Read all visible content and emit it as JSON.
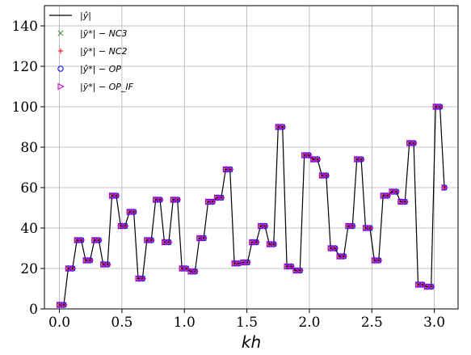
{
  "chart_data": {
    "type": "line",
    "title": "",
    "xlabel": "kh",
    "ylabel": "",
    "xlim": [
      -0.12,
      3.19
    ],
    "ylim": [
      0,
      150
    ],
    "x_ticks": [
      0.0,
      0.5,
      1.0,
      1.5,
      2.0,
      2.5,
      3.0
    ],
    "x_tick_labels": [
      "0.0",
      "0.5",
      "1.0",
      "1.5",
      "2.0",
      "2.5",
      "3.0"
    ],
    "y_ticks": [
      0,
      20,
      40,
      60,
      80,
      100,
      120,
      140
    ],
    "y_tick_labels": [
      "0",
      "20",
      "40",
      "60",
      "80",
      "100",
      "120",
      "140"
    ],
    "grid": true,
    "legend_position": "top-left",
    "x": [
      0.0,
      0.035,
      0.07,
      0.105,
      0.14,
      0.175,
      0.21,
      0.245,
      0.28,
      0.315,
      0.35,
      0.385,
      0.42,
      0.455,
      0.49,
      0.525,
      0.56,
      0.595,
      0.63,
      0.665,
      0.7,
      0.735,
      0.77,
      0.805,
      0.84,
      0.875,
      0.91,
      0.945,
      0.98,
      1.015,
      1.05,
      1.085,
      1.12,
      1.155,
      1.19,
      1.225,
      1.26,
      1.295,
      1.33,
      1.365,
      1.4,
      1.435,
      1.47,
      1.505,
      1.54,
      1.575,
      1.61,
      1.645,
      1.68,
      1.715,
      1.75,
      1.785,
      1.82,
      1.855,
      1.89,
      1.925,
      1.96,
      1.995,
      2.03,
      2.065,
      2.1,
      2.135,
      2.17,
      2.205,
      2.24,
      2.275,
      2.31,
      2.345,
      2.38,
      2.415,
      2.45,
      2.485,
      2.52,
      2.555,
      2.59,
      2.625,
      2.66,
      2.695,
      2.73,
      2.765,
      2.8,
      2.835,
      2.87,
      2.905,
      2.94,
      2.975,
      3.01,
      3.045,
      3.08
    ],
    "series": [
      {
        "name": "|ŷ|",
        "style": "line",
        "color": "#000000",
        "values": [
          2,
          2,
          20,
          20,
          34,
          34,
          24,
          24,
          34,
          34,
          22,
          22,
          56,
          56,
          41,
          41,
          48,
          48,
          15,
          15,
          34,
          34,
          54,
          54,
          33,
          33,
          54,
          54,
          20,
          20,
          18.5,
          18.5,
          35,
          35,
          53,
          53,
          55,
          55,
          69,
          69,
          22.5,
          22.5,
          23,
          23,
          33,
          33,
          41,
          41,
          32,
          32,
          90,
          90,
          21,
          21,
          19,
          19,
          76,
          76,
          74,
          74,
          66,
          66,
          30,
          30,
          26,
          26,
          41,
          41,
          74,
          74,
          40,
          40,
          24,
          24,
          56,
          56,
          58,
          58,
          53,
          53,
          82,
          82,
          12,
          12,
          11,
          11,
          100,
          100,
          60
        ]
      },
      {
        "name": "|ỹ*| − NC3",
        "style": "marker",
        "marker": "x",
        "color": "#2e8b2e",
        "values": [
          2,
          2,
          20,
          20,
          34,
          34,
          24,
          24,
          34,
          34,
          22,
          22,
          56,
          56,
          41,
          41,
          48,
          48,
          15,
          15,
          34,
          34,
          54,
          54,
          33,
          33,
          54,
          54,
          20,
          20,
          18.5,
          18.5,
          35,
          35,
          53,
          53,
          55,
          55,
          69,
          69,
          22.5,
          22.5,
          23,
          23,
          33,
          33,
          41,
          41,
          32,
          32,
          90,
          90,
          21,
          21,
          19,
          19,
          76,
          76,
          74,
          74,
          66,
          66,
          30,
          30,
          26,
          26,
          41,
          41,
          74,
          74,
          40,
          40,
          24,
          24,
          56,
          56,
          58,
          58,
          53,
          53,
          82,
          82,
          12,
          12,
          11,
          11,
          100,
          100,
          60
        ]
      },
      {
        "name": "|ỹ*| − NC2",
        "style": "marker",
        "marker": "+",
        "color": "#ff0000",
        "values": [
          2,
          2,
          20,
          20,
          34,
          34,
          24,
          24,
          34,
          34,
          22,
          22,
          56,
          56,
          41,
          41,
          48,
          48,
          15,
          15,
          34,
          34,
          54,
          54,
          33,
          33,
          54,
          54,
          20,
          20,
          18.5,
          18.5,
          35,
          35,
          53,
          53,
          55,
          55,
          69,
          69,
          22.5,
          22.5,
          23,
          23,
          33,
          33,
          41,
          41,
          32,
          32,
          90,
          90,
          21,
          21,
          19,
          19,
          76,
          76,
          74,
          74,
          66,
          66,
          30,
          30,
          26,
          26,
          41,
          41,
          74,
          74,
          40,
          40,
          24,
          24,
          56,
          56,
          58,
          58,
          53,
          53,
          82,
          82,
          12,
          12,
          11,
          11,
          100,
          100,
          60
        ]
      },
      {
        "name": "|ŷ*| − OP",
        "style": "marker",
        "marker": "o",
        "color": "#0000ff",
        "values": [
          2,
          2,
          20,
          20,
          34,
          34,
          24,
          24,
          34,
          34,
          22,
          22,
          56,
          56,
          41,
          41,
          48,
          48,
          15,
          15,
          34,
          34,
          54,
          54,
          33,
          33,
          54,
          54,
          20,
          20,
          18.5,
          18.5,
          35,
          35,
          53,
          53,
          55,
          55,
          69,
          69,
          22.5,
          22.5,
          23,
          23,
          33,
          33,
          41,
          41,
          32,
          32,
          90,
          90,
          21,
          21,
          19,
          19,
          76,
          76,
          74,
          74,
          66,
          66,
          30,
          30,
          26,
          26,
          41,
          41,
          74,
          74,
          40,
          40,
          24,
          24,
          56,
          56,
          58,
          58,
          53,
          53,
          82,
          82,
          12,
          12,
          11,
          11,
          100,
          100,
          60
        ]
      },
      {
        "name": "|ỹ*| − OP_IF",
        "style": "marker",
        "marker": ">",
        "color": "#cc00cc",
        "values": [
          2,
          2,
          20,
          20,
          34,
          34,
          24,
          24,
          34,
          34,
          22,
          22,
          56,
          56,
          41,
          41,
          48,
          48,
          15,
          15,
          34,
          34,
          54,
          54,
          33,
          33,
          54,
          54,
          20,
          20,
          18.5,
          18.5,
          35,
          35,
          53,
          53,
          55,
          55,
          69,
          69,
          22.5,
          22.5,
          23,
          23,
          33,
          33,
          41,
          41,
          32,
          32,
          90,
          90,
          21,
          21,
          19,
          19,
          76,
          76,
          74,
          74,
          66,
          66,
          30,
          30,
          26,
          26,
          41,
          41,
          74,
          74,
          40,
          40,
          24,
          24,
          56,
          56,
          58,
          58,
          53,
          53,
          82,
          82,
          12,
          12,
          11,
          11,
          100,
          100,
          60
        ]
      }
    ]
  }
}
